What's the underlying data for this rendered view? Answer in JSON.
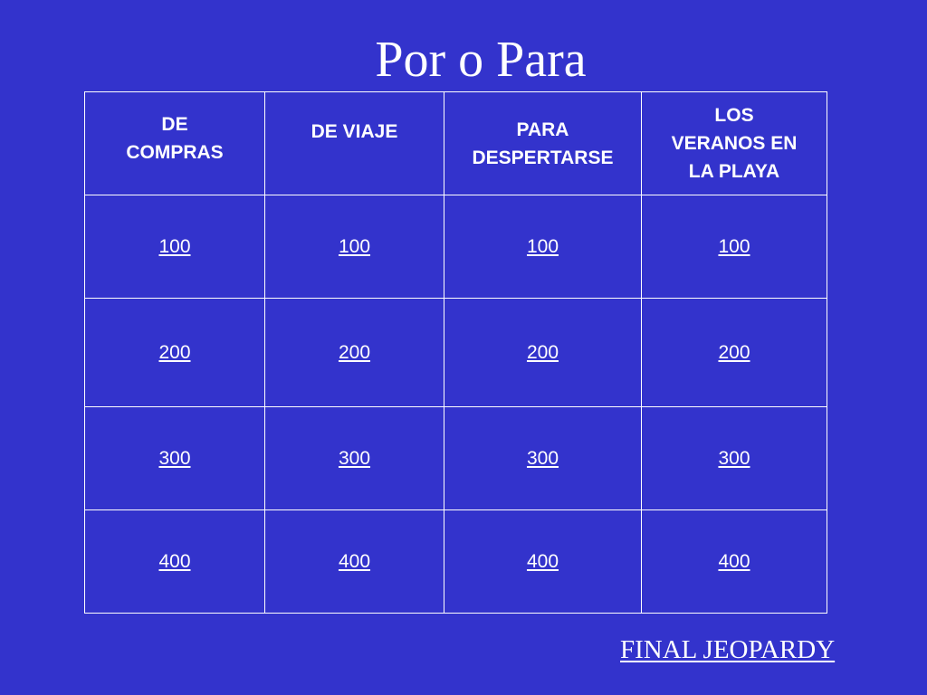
{
  "title": "Por o Para",
  "categories": [
    "DE\nCOMPRAS",
    "DE VIAJE",
    "PARA\nDESPERTARSE",
    "LOS\nVERANOS EN\nLA PLAYA"
  ],
  "rows": [
    [
      "100",
      "100",
      "100",
      "100"
    ],
    [
      "200",
      "200",
      "200",
      "200"
    ],
    [
      "300",
      "300",
      "300",
      "300"
    ],
    [
      "400",
      "400",
      "400",
      "400"
    ]
  ],
  "final_link": "FINAL JEOPARDY",
  "colors": {
    "background": "#3333cc",
    "text": "#ffffff",
    "grid": "#ffffff"
  }
}
